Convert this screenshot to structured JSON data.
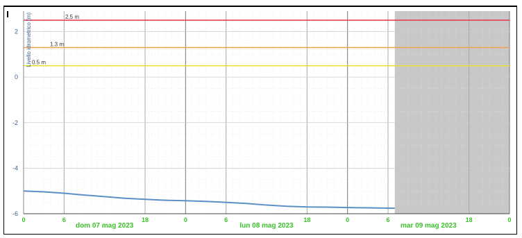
{
  "chart_data": {
    "type": "line",
    "ylabel": "Livello idrometrico (m)",
    "ylim": [
      -6,
      2.9
    ],
    "xlim_hours": [
      0,
      72
    ],
    "y_ticks": [
      "2",
      "0",
      "-2",
      "-4",
      "-6"
    ],
    "y_tick_values": [
      2,
      0,
      -2,
      -4,
      -6
    ],
    "x_ticks": [
      "0",
      "6",
      "18",
      "0",
      "6",
      "18",
      "0",
      "6",
      "18",
      "0"
    ],
    "x_tick_hours": [
      0,
      6,
      18,
      24,
      30,
      42,
      48,
      54,
      66,
      72
    ],
    "date_labels": [
      "dom 07 mag 2023",
      "lun 08 mag 2023",
      "mar 09 mag 2023"
    ],
    "date_label_hours": [
      12,
      36,
      60
    ],
    "thresholds": [
      {
        "label": "2.5 m",
        "value": 2.5,
        "color": "#e8334a"
      },
      {
        "label": "1.3 m",
        "value": 1.3,
        "color": "#f0a050"
      },
      {
        "label": "0.5 m",
        "value": 0.5,
        "color": "#e8e030"
      }
    ],
    "shaded_region_hours": [
      55,
      72
    ],
    "series": [
      {
        "color": "#5b8fc7",
        "x_hours": [
          0,
          3,
          6,
          9,
          12,
          15,
          18,
          21,
          24,
          27,
          30,
          33,
          36,
          39,
          42,
          45,
          48,
          51,
          55
        ],
        "values": [
          -5.0,
          -5.04,
          -5.1,
          -5.18,
          -5.25,
          -5.32,
          -5.37,
          -5.41,
          -5.43,
          -5.46,
          -5.5,
          -5.55,
          -5.62,
          -5.67,
          -5.7,
          -5.71,
          -5.73,
          -5.74,
          -5.76
        ]
      }
    ],
    "grid": true
  }
}
